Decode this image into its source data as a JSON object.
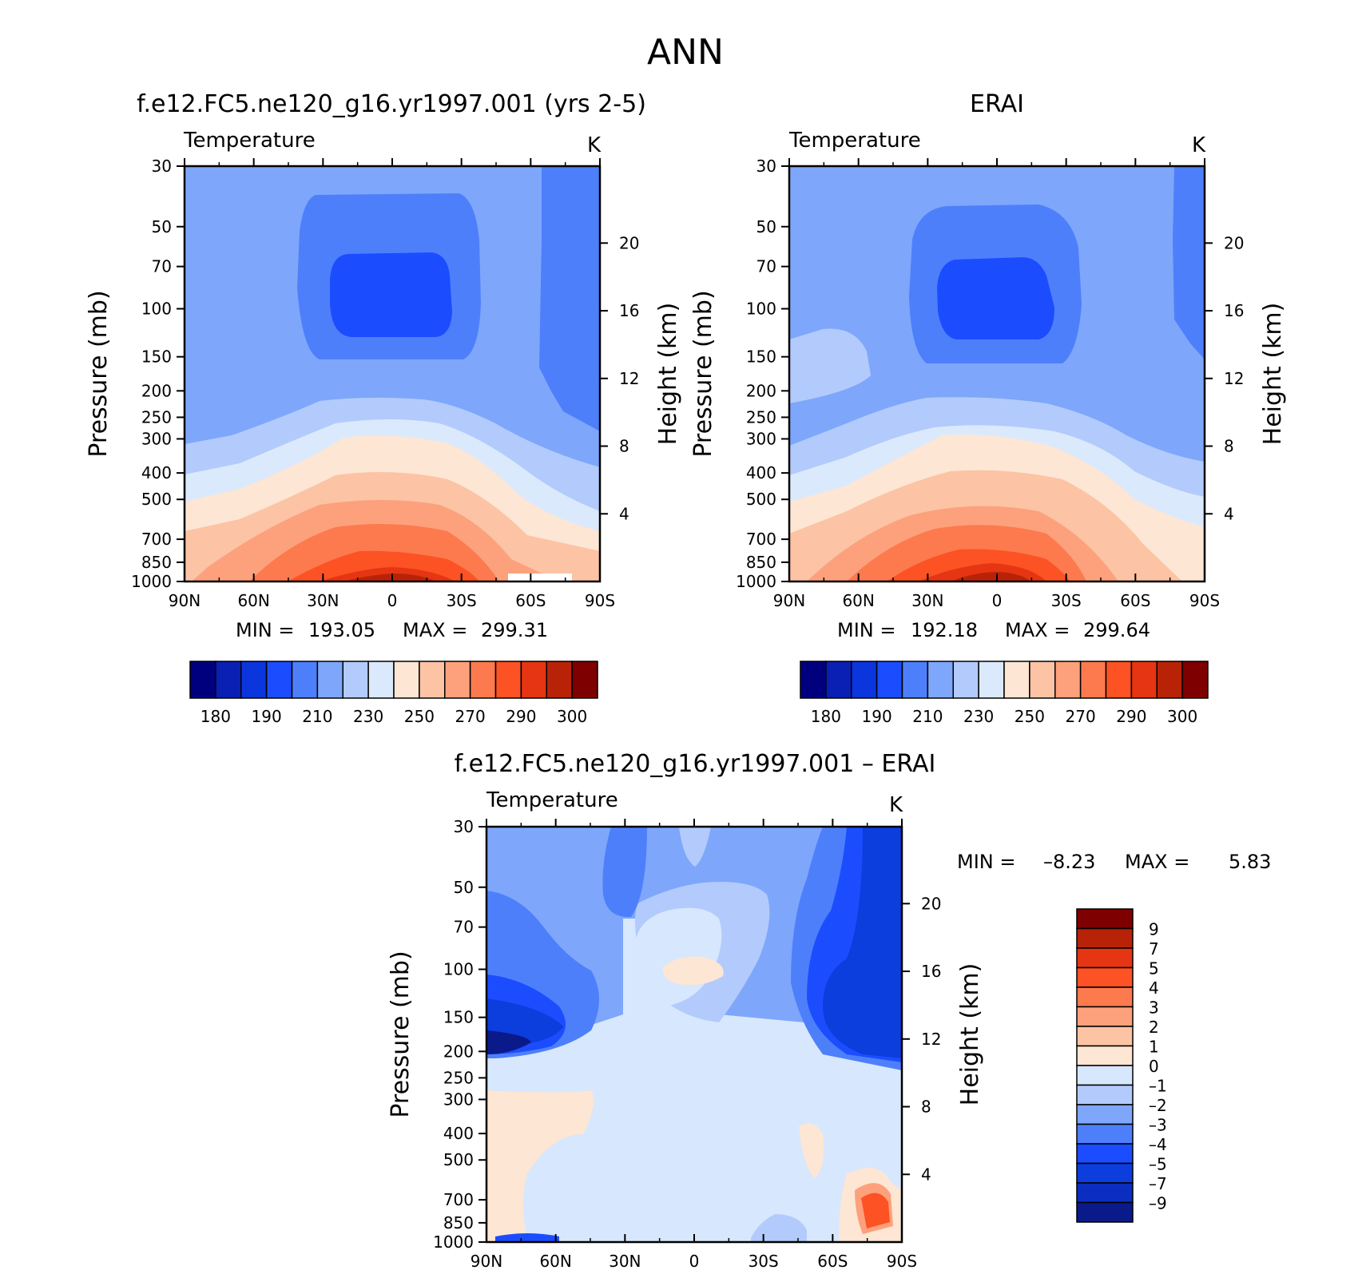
{
  "title": "ANN",
  "colors": {
    "abs_palette": [
      "#00007f",
      "#0a1fb4",
      "#0b35dd",
      "#1b4dff",
      "#4e7ffb",
      "#7ea7fb",
      "#b2cbfc",
      "#dbe9fc",
      "#fde6d3",
      "#fcc3a5",
      "#fca17c",
      "#fc7a4e",
      "#fc5224",
      "#e53512",
      "#b82308",
      "#7f0000"
    ],
    "diff_palette": [
      "#0a1a8a",
      "#0b2ec0",
      "#0c3ddd",
      "#1b4dff",
      "#4e7ffb",
      "#7ea7fb",
      "#b2cbfc",
      "#d7e7fd",
      "#fde6d3",
      "#fcc3a5",
      "#fca17c",
      "#fc7a4e",
      "#fc5224",
      "#e53512",
      "#b82308",
      "#7f0000"
    ]
  },
  "chart_data": [
    {
      "type": "heatmap",
      "title": "f.e12.FC5.ne120_g16.yr1997.001 (yrs 2-5)",
      "subtitle_left": "Temperature",
      "units": "K",
      "ylabel": "Pressure (mb)",
      "y2label": "Height (km)",
      "x_ticks": [
        "90N",
        "60N",
        "30N",
        "0",
        "30S",
        "60S",
        "90S"
      ],
      "y_ticks": [
        30,
        50,
        70,
        100,
        150,
        200,
        250,
        300,
        400,
        500,
        700,
        850,
        1000
      ],
      "y2_ticks": [
        4,
        8,
        12,
        16,
        20
      ],
      "min_label": "MIN =",
      "min_value": "193.05",
      "max_label": "MAX =",
      "max_value": "299.31",
      "colorbar_labels": [
        "180",
        "190",
        "210",
        "230",
        "250",
        "270",
        "290",
        "300"
      ]
    },
    {
      "type": "heatmap",
      "title": "ERAI",
      "subtitle_left": "Temperature",
      "units": "K",
      "ylabel": "Pressure (mb)",
      "y2label": "Height (km)",
      "x_ticks": [
        "90N",
        "60N",
        "30N",
        "0",
        "30S",
        "60S",
        "90S"
      ],
      "y_ticks": [
        30,
        50,
        70,
        100,
        150,
        200,
        250,
        300,
        400,
        500,
        700,
        850,
        1000
      ],
      "y2_ticks": [
        4,
        8,
        12,
        16,
        20
      ],
      "min_label": "MIN =",
      "min_value": "192.18",
      "max_label": "MAX =",
      "max_value": "299.64",
      "colorbar_labels": [
        "180",
        "190",
        "210",
        "230",
        "250",
        "270",
        "290",
        "300"
      ]
    },
    {
      "type": "heatmap",
      "title": "f.e12.FC5.ne120_g16.yr1997.001 – ERAI",
      "subtitle_left": "Temperature",
      "units": "K",
      "ylabel": "Pressure (mb)",
      "y2label": "Height (km)",
      "x_ticks": [
        "90N",
        "60N",
        "30N",
        "0",
        "30S",
        "60S",
        "90S"
      ],
      "y_ticks": [
        30,
        50,
        70,
        100,
        150,
        200,
        250,
        300,
        400,
        500,
        700,
        850,
        1000
      ],
      "y2_ticks": [
        4,
        8,
        12,
        16,
        20
      ],
      "min_label": "MIN =",
      "min_value": "–8.23",
      "max_label": "MAX =",
      "max_value": "5.83",
      "colorbar_labels": [
        "9",
        "7",
        "5",
        "4",
        "3",
        "2",
        "1",
        "0",
        "–1",
        "–2",
        "–3",
        "–4",
        "–5",
        "–7",
        "–9"
      ]
    }
  ]
}
